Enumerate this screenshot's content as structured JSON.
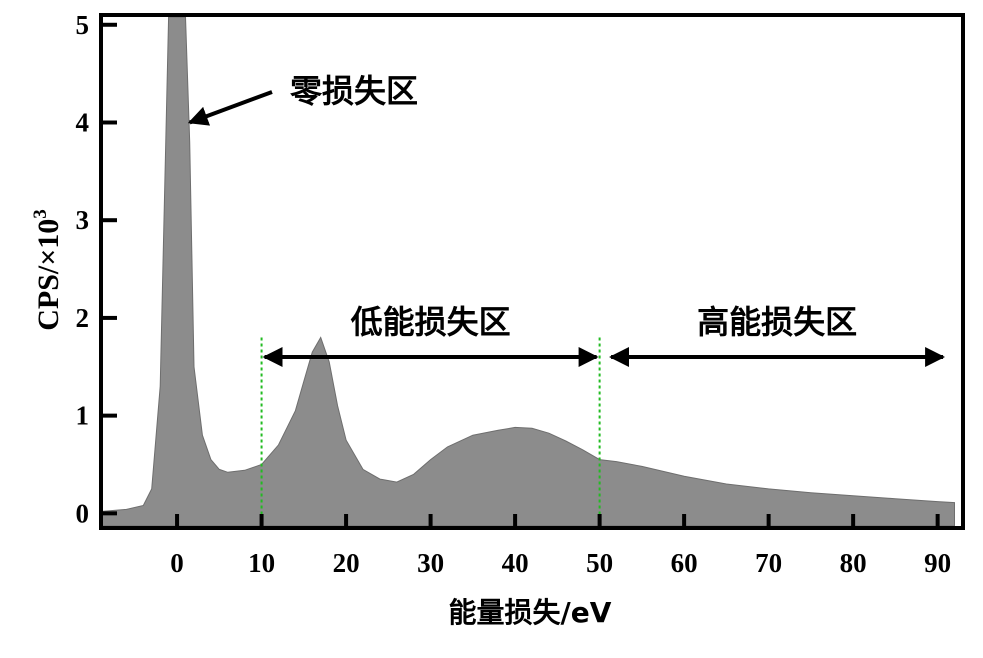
{
  "chart_data": {
    "type": "area",
    "title": "",
    "xlabel": "能量损失/eV",
    "ylabel": "CPS/×10",
    "ylabel_sup": "3",
    "xlim": [
      -9,
      93
    ],
    "ylim": [
      -0.15,
      5.1
    ],
    "x_ticks": [
      0,
      10,
      20,
      30,
      40,
      50,
      60,
      70,
      80,
      90
    ],
    "x_tick_labels": [
      "0",
      "10",
      "20",
      "30",
      "40",
      "50",
      "60",
      "70",
      "80",
      "90"
    ],
    "y_ticks": [
      0,
      1,
      2,
      3,
      4,
      5
    ],
    "y_tick_labels": [
      "0",
      "1",
      "2",
      "3",
      "4",
      "5"
    ],
    "fill_color": "#8c8c8c",
    "guide_color": "#22bb22",
    "series": [
      {
        "x": [
          -9,
          -6,
          -4,
          -3,
          -2,
          -1,
          -0.5,
          0,
          0.5,
          1,
          1.5,
          2,
          3,
          4,
          5,
          6,
          8,
          10,
          12,
          14,
          15,
          16,
          17,
          18,
          19,
          20,
          22,
          24,
          26,
          28,
          30,
          32,
          35,
          38,
          40,
          42,
          44,
          46,
          48,
          50,
          52,
          55,
          60,
          65,
          70,
          75,
          80,
          85,
          90,
          92
        ],
        "y": [
          0.02,
          0.04,
          0.08,
          0.25,
          1.3,
          5.1,
          5.1,
          5.1,
          5.1,
          5.1,
          3.8,
          1.5,
          0.8,
          0.55,
          0.45,
          0.42,
          0.44,
          0.5,
          0.7,
          1.05,
          1.35,
          1.65,
          1.8,
          1.55,
          1.1,
          0.75,
          0.45,
          0.35,
          0.32,
          0.4,
          0.55,
          0.68,
          0.8,
          0.85,
          0.88,
          0.87,
          0.82,
          0.74,
          0.65,
          0.55,
          0.53,
          0.48,
          0.38,
          0.3,
          0.25,
          0.21,
          0.18,
          0.15,
          0.12,
          0.11
        ]
      }
    ],
    "annotations": [
      {
        "text": "零损失区",
        "arrow_to": [
          1.5,
          4.0
        ]
      },
      {
        "text": "低能损失区",
        "range": [
          10,
          50
        ],
        "arrow_y": 1.6
      },
      {
        "text": "高能损失区",
        "range": [
          51,
          91
        ],
        "arrow_y": 1.6
      }
    ],
    "guide_lines_x": [
      10,
      50
    ]
  }
}
